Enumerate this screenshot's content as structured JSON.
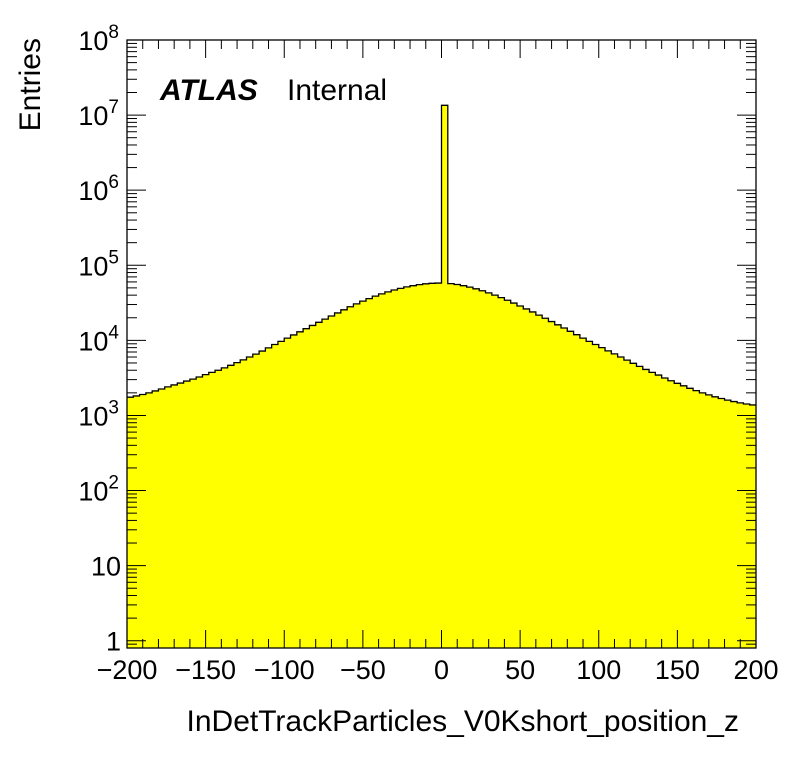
{
  "chart_data": {
    "type": "bar",
    "histogram_style": "step-filled",
    "fill_color": "#ffff00",
    "line_color": "#000000",
    "background": "#ffffff",
    "title": "",
    "xlabel": "InDetTrackParticles_V0Kshort_position_z",
    "ylabel": "Entries",
    "label_brand": "ATLAS",
    "label_status": "Internal",
    "xlim": [
      -200,
      200
    ],
    "ylim": [
      0.8,
      100000000
    ],
    "y_scale": "log",
    "grid": false,
    "legend": "none",
    "x_ticks": [
      "-200",
      "-150",
      "-100",
      "-50",
      "0",
      "50",
      "100",
      "150",
      "200"
    ],
    "y_ticks": [
      {
        "value": 1,
        "base": "1",
        "exp": ""
      },
      {
        "value": 10,
        "base": "10",
        "exp": ""
      },
      {
        "value": 100,
        "base": "10",
        "exp": "2"
      },
      {
        "value": 1000,
        "base": "10",
        "exp": "3"
      },
      {
        "value": 10000,
        "base": "10",
        "exp": "4"
      },
      {
        "value": 100000,
        "base": "10",
        "exp": "5"
      },
      {
        "value": 1000000,
        "base": "10",
        "exp": "6"
      },
      {
        "value": 10000000,
        "base": "10",
        "exp": "7"
      },
      {
        "value": 100000000,
        "base": "10",
        "exp": "8"
      }
    ],
    "bin_width": 4,
    "bin_centers": [
      -198,
      -194,
      -190,
      -186,
      -182,
      -178,
      -174,
      -170,
      -166,
      -162,
      -158,
      -154,
      -150,
      -146,
      -142,
      -138,
      -134,
      -130,
      -126,
      -122,
      -118,
      -114,
      -110,
      -106,
      -102,
      -98,
      -94,
      -90,
      -86,
      -82,
      -78,
      -74,
      -70,
      -66,
      -62,
      -58,
      -54,
      -50,
      -46,
      -42,
      -38,
      -34,
      -30,
      -26,
      -22,
      -18,
      -14,
      -10,
      -6,
      -2,
      2,
      6,
      10,
      14,
      18,
      22,
      26,
      30,
      34,
      38,
      42,
      46,
      50,
      54,
      58,
      62,
      66,
      70,
      74,
      78,
      82,
      86,
      90,
      94,
      98,
      102,
      106,
      110,
      114,
      118,
      122,
      126,
      130,
      134,
      138,
      142,
      146,
      150,
      154,
      158,
      162,
      166,
      170,
      174,
      178,
      182,
      186,
      190,
      194,
      198
    ],
    "values": [
      1750,
      1820,
      1900,
      2000,
      2120,
      2250,
      2400,
      2550,
      2700,
      2870,
      3050,
      3250,
      3500,
      3750,
      4000,
      4300,
      4650,
      5050,
      5500,
      6000,
      6550,
      7200,
      7950,
      8800,
      9700,
      10700,
      11800,
      13000,
      14300,
      15800,
      17400,
      19200,
      21100,
      23200,
      25500,
      28000,
      30600,
      33300,
      36000,
      38800,
      41600,
      44200,
      46800,
      49300,
      51500,
      53500,
      55200,
      56600,
      57500,
      58000,
      13500000,
      57000,
      55500,
      53500,
      51200,
      48600,
      45800,
      42900,
      40000,
      37100,
      34200,
      31400,
      28700,
      26200,
      23900,
      21700,
      19700,
      17800,
      16100,
      14600,
      13200,
      11900,
      10700,
      9700,
      8800,
      8000,
      7250,
      6600,
      6000,
      5450,
      4950,
      4500,
      4100,
      3750,
      3450,
      3150,
      2900,
      2680,
      2480,
      2300,
      2140,
      2000,
      1880,
      1770,
      1680,
      1600,
      1530,
      1470,
      1420,
      1380
    ]
  }
}
